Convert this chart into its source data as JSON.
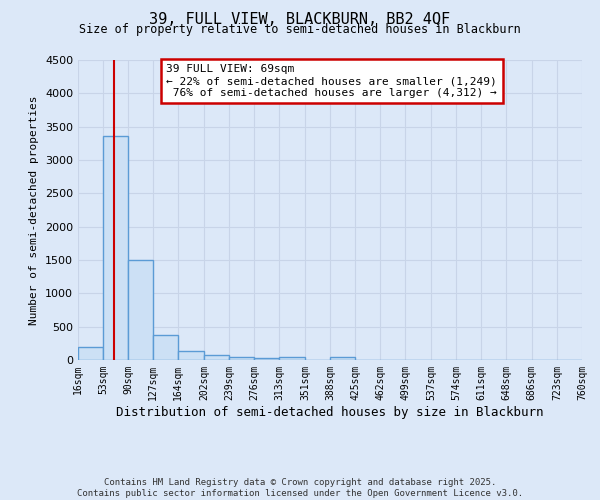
{
  "title": "39, FULL VIEW, BLACKBURN, BB2 4QF",
  "subtitle": "Size of property relative to semi-detached houses in Blackburn",
  "xlabel": "Distribution of semi-detached houses by size in Blackburn",
  "ylabel": "Number of semi-detached properties",
  "bar_color": "#cce0f5",
  "bar_edge_color": "#5b9bd5",
  "bar_linewidth": 1.0,
  "grid_color": "#c8d4e8",
  "bin_edges": [
    16,
    53,
    90,
    127,
    164,
    202,
    239,
    276,
    313,
    351,
    388,
    425,
    462,
    499,
    537,
    574,
    611,
    648,
    686,
    723,
    760
  ],
  "bin_labels": [
    "16sqm",
    "53sqm",
    "90sqm",
    "127sqm",
    "164sqm",
    "202sqm",
    "239sqm",
    "276sqm",
    "313sqm",
    "351sqm",
    "388sqm",
    "425sqm",
    "462sqm",
    "499sqm",
    "537sqm",
    "574sqm",
    "611sqm",
    "648sqm",
    "686sqm",
    "723sqm",
    "760sqm"
  ],
  "counts": [
    190,
    3360,
    1500,
    370,
    140,
    75,
    45,
    30,
    45,
    0,
    45,
    0,
    0,
    0,
    0,
    0,
    0,
    0,
    0,
    0
  ],
  "property_size": 69,
  "property_label": "39 FULL VIEW: 69sqm",
  "pct_smaller": 22,
  "n_smaller": 1249,
  "pct_larger": 76,
  "n_larger": 4312,
  "annotation_box_color": "#ffffff",
  "annotation_box_edge": "#cc0000",
  "vline_color": "#cc0000",
  "ylim": [
    0,
    4500
  ],
  "yticks": [
    0,
    500,
    1000,
    1500,
    2000,
    2500,
    3000,
    3500,
    4000,
    4500
  ],
  "footer_line1": "Contains HM Land Registry data © Crown copyright and database right 2025.",
  "footer_line2": "Contains public sector information licensed under the Open Government Licence v3.0.",
  "bg_color": "#dce8f8"
}
